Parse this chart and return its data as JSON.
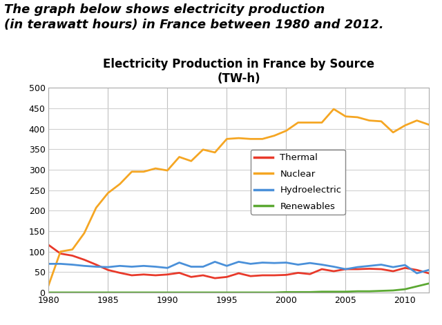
{
  "title_main": "The graph below shows electricity production\n(in terawatt hours) in France between 1980 and 2012.",
  "chart_title": "Electricity Production in France by Source\n(TW-h)",
  "years": [
    1980,
    1981,
    1982,
    1983,
    1984,
    1985,
    1986,
    1987,
    1988,
    1989,
    1990,
    1991,
    1992,
    1993,
    1994,
    1995,
    1996,
    1997,
    1998,
    1999,
    2000,
    2001,
    2002,
    2003,
    2004,
    2005,
    2006,
    2007,
    2008,
    2009,
    2010,
    2011,
    2012
  ],
  "thermal": [
    116,
    95,
    90,
    80,
    68,
    55,
    48,
    42,
    44,
    42,
    44,
    48,
    38,
    42,
    35,
    38,
    47,
    40,
    42,
    42,
    43,
    48,
    45,
    57,
    52,
    57,
    57,
    58,
    57,
    52,
    60,
    55,
    47
  ],
  "nuclear": [
    18,
    100,
    105,
    145,
    207,
    243,
    265,
    295,
    295,
    303,
    298,
    331,
    321,
    349,
    342,
    375,
    377,
    375,
    375,
    383,
    395,
    415,
    415,
    415,
    448,
    430,
    428,
    420,
    418,
    391,
    408,
    420,
    410
  ],
  "hydro": [
    70,
    70,
    68,
    65,
    63,
    62,
    65,
    63,
    65,
    63,
    60,
    73,
    63,
    63,
    75,
    65,
    75,
    70,
    73,
    72,
    73,
    68,
    72,
    68,
    63,
    57,
    62,
    65,
    68,
    62,
    67,
    47,
    55
  ],
  "renewables": [
    0,
    0,
    0,
    0,
    0,
    0,
    0,
    0,
    0,
    0,
    0,
    0,
    0,
    0,
    0,
    0,
    0,
    0,
    0,
    0,
    1,
    1,
    1,
    2,
    2,
    2,
    3,
    3,
    4,
    5,
    8,
    15,
    22
  ],
  "thermal_color": "#e8392a",
  "nuclear_color": "#f5a623",
  "hydro_color": "#4a90d9",
  "renewables_color": "#5ba832",
  "bg_color": "#ffffff",
  "plot_bg_color": "#ffffff",
  "grid_color_v": "#c0c0c0",
  "grid_color_h": "#d0d0d0",
  "ylim": [
    0,
    500
  ],
  "yticks": [
    0,
    50,
    100,
    150,
    200,
    250,
    300,
    350,
    400,
    450,
    500
  ],
  "xticks": [
    1980,
    1985,
    1990,
    1995,
    2000,
    2005,
    2010
  ],
  "linewidth": 2.0,
  "title_fontsize": 13,
  "chart_title_fontsize": 12
}
